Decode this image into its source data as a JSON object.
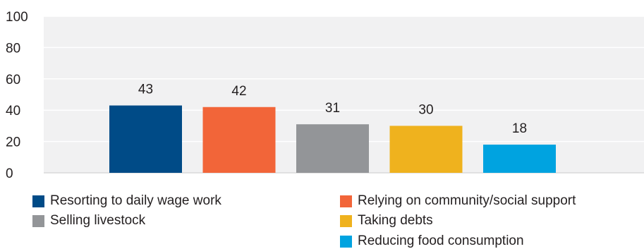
{
  "chart_data": {
    "type": "bar",
    "title": "",
    "xlabel": "",
    "ylabel": "",
    "ylim": [
      0,
      100
    ],
    "yticks": [
      0,
      20,
      40,
      60,
      80,
      100
    ],
    "grid": true,
    "legend_position": "bottom",
    "categories": [
      "Resorting to daily wage work",
      "Relying on community/social support",
      "Selling livestock",
      "Taking debts",
      "Reducing food consumption"
    ],
    "values": [
      43,
      42,
      31,
      30,
      18
    ],
    "data_labels": [
      "43",
      "42",
      "31",
      "30",
      "18"
    ],
    "colors": [
      "#004b87",
      "#f26539",
      "#939598",
      "#efb21e",
      "#00a3e0"
    ],
    "plot_background": "#f1f1f2",
    "grid_color": "#ffffff"
  },
  "legend": {
    "items": [
      {
        "label": "Resorting to daily wage work",
        "color": "#004b87"
      },
      {
        "label": "Relying on community/social support",
        "color": "#f26539"
      },
      {
        "label": "Selling livestock",
        "color": "#939598"
      },
      {
        "label": "Taking debts",
        "color": "#efb21e"
      },
      {
        "label": "Reducing food consumption",
        "color": "#00a3e0"
      }
    ]
  }
}
